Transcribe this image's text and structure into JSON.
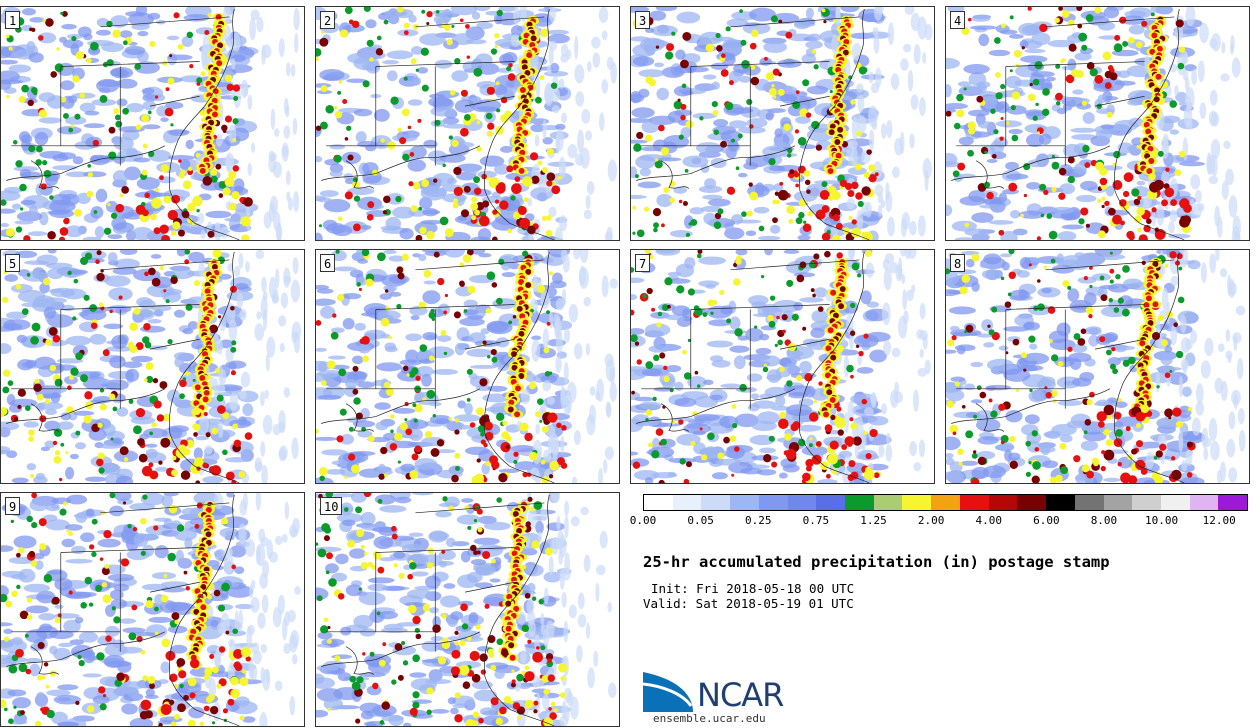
{
  "panels": [
    {
      "label": "1"
    },
    {
      "label": "2"
    },
    {
      "label": "3"
    },
    {
      "label": "4"
    },
    {
      "label": "5"
    },
    {
      "label": "6"
    },
    {
      "label": "7"
    },
    {
      "label": "8"
    },
    {
      "label": "9"
    },
    {
      "label": "10"
    }
  ],
  "colorbar": {
    "colors": [
      "#ffffff",
      "#e8f0fc",
      "#ccdcf8",
      "#9eb6f2",
      "#8098f0",
      "#7088ec",
      "#5a6ee6",
      "#0a9b2c",
      "#aacc72",
      "#f6f630",
      "#f3a214",
      "#e51010",
      "#b40808",
      "#780202",
      "#000000",
      "#737373",
      "#a3a3a3",
      "#cfcfcf",
      "#f0f0f0",
      "#e0b4f2",
      "#9a1ad8"
    ],
    "tick_labels": [
      "0.00",
      "0.05",
      "0.25",
      "0.75",
      "1.25",
      "2.00",
      "4.00",
      "6.00",
      "8.00",
      "10.00",
      "12.00"
    ]
  },
  "title": "25-hr accumulated precipitation (in) postage stamp",
  "init_text": "Init: Fri 2018-05-18 00 UTC",
  "valid_text": "Valid: Sat 2018-05-19 01 UTC",
  "logo": {
    "name": "NCAR",
    "url": "ensemble.ucar.edu"
  }
}
